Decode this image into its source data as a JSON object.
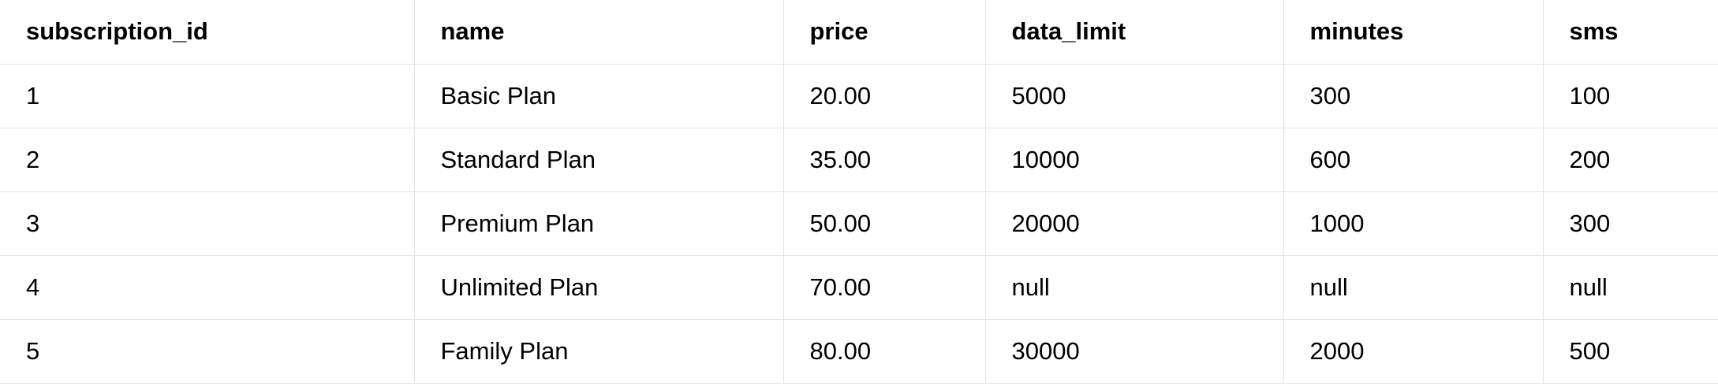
{
  "table": {
    "columns": [
      "subscription_id",
      "name",
      "price",
      "data_limit",
      "minutes",
      "sms"
    ],
    "rows": [
      [
        "1",
        "Basic Plan",
        "20.00",
        "5000",
        "300",
        "100"
      ],
      [
        "2",
        "Standard Plan",
        "35.00",
        "10000",
        "600",
        "200"
      ],
      [
        "3",
        "Premium Plan",
        "50.00",
        "20000",
        "1000",
        "300"
      ],
      [
        "4",
        "Unlimited Plan",
        "70.00",
        "null",
        "null",
        "null"
      ],
      [
        "5",
        "Family Plan",
        "80.00",
        "30000",
        "2000",
        "500"
      ]
    ]
  }
}
